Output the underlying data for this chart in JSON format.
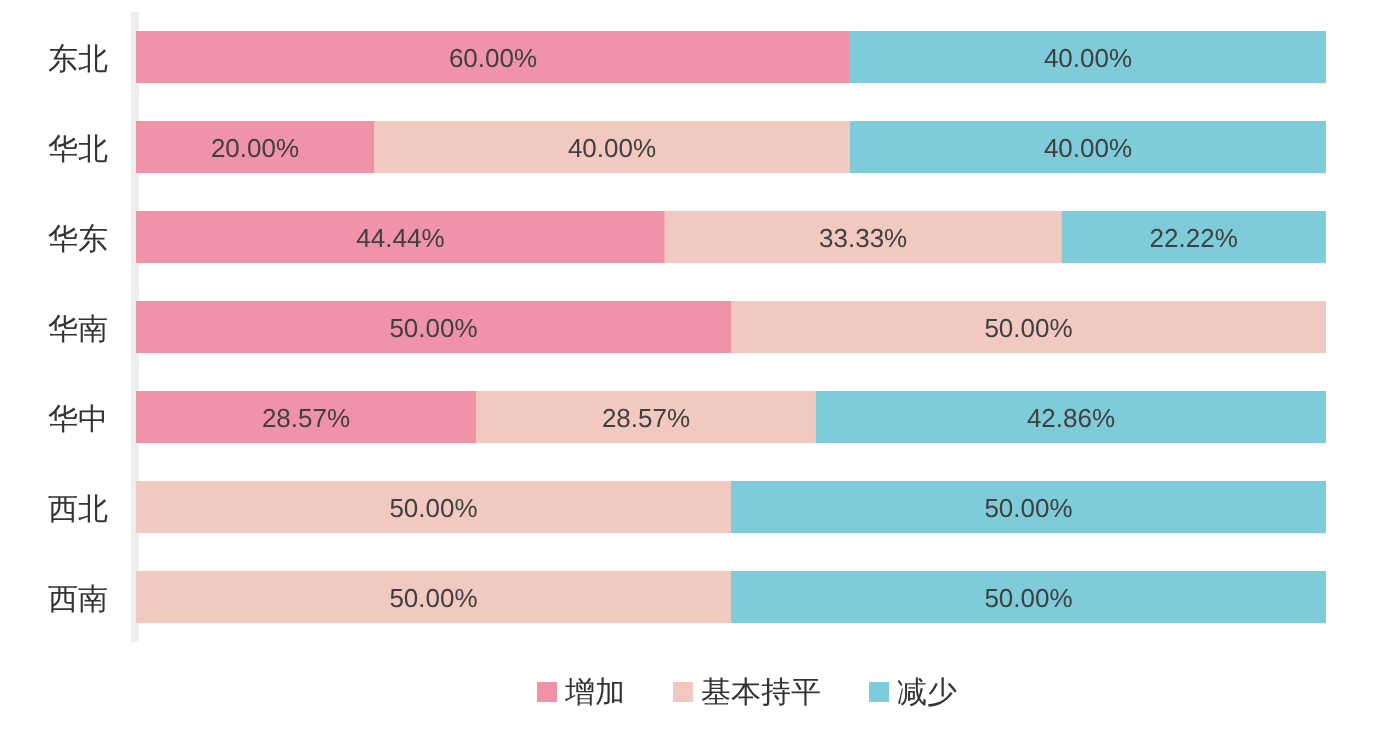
{
  "chart_data": {
    "type": "bar",
    "orientation": "horizontal",
    "stacked": true,
    "categories": [
      "东北",
      "华北",
      "华东",
      "华南",
      "华中",
      "西北",
      "西南"
    ],
    "xlim": [
      0,
      100
    ],
    "tick_labels": "y",
    "legend": "bottom",
    "series": [
      {
        "name": "增加",
        "color": "#f093a9",
        "values": [
          60,
          20,
          44.44,
          50,
          28.57,
          null,
          null
        ],
        "value_labels": [
          "60.00%",
          "20.00%",
          "44.44%",
          "50.00%",
          "28.57%",
          null,
          null
        ]
      },
      {
        "name": "基本持平",
        "color": "#f2c9c0",
        "values": [
          null,
          40,
          33.33,
          50,
          28.57,
          50,
          50
        ],
        "value_labels": [
          null,
          "40.00%",
          "33.33%",
          "50.00%",
          "28.57%",
          "50.00%",
          "50.00%"
        ]
      },
      {
        "name": "减少",
        "color": "#7ecbd9",
        "values": [
          40,
          40,
          22.22,
          null,
          42.86,
          50,
          50
        ],
        "value_labels": [
          "40.00%",
          "40.00%",
          "22.22%",
          null,
          "42.86%",
          "50.00%",
          "50.00%"
        ]
      }
    ]
  }
}
